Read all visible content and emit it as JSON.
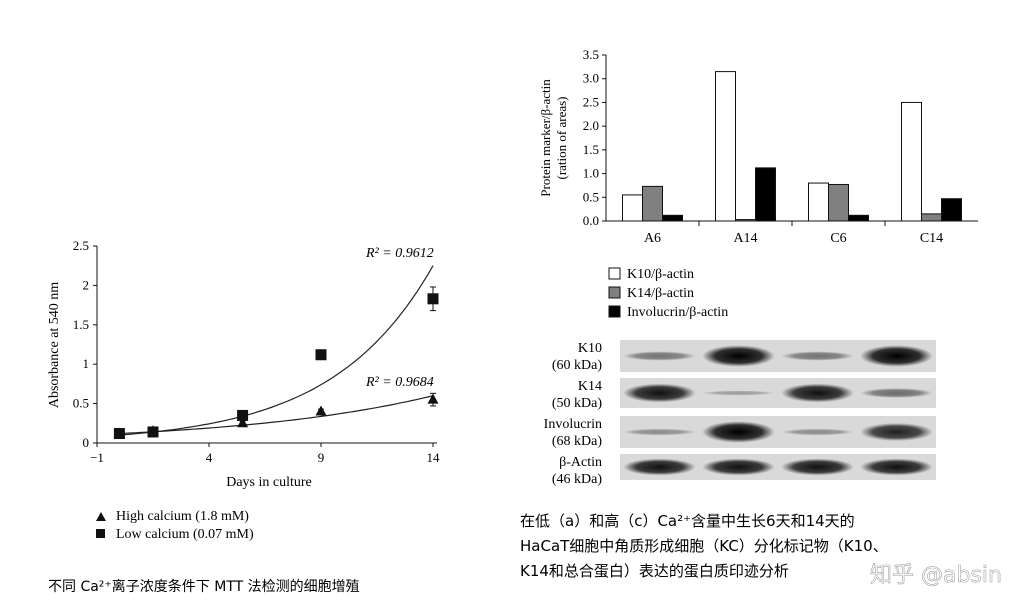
{
  "left_chart": {
    "chart_data": {
      "type": "scatter",
      "xlabel": "Days in culture",
      "ylabel": "Absorbance at 540 nm",
      "xlim": [
        -1,
        14
      ],
      "ylim": [
        0,
        2.5
      ],
      "x_ticks": [
        "−1",
        "4",
        "9",
        "14"
      ],
      "y_ticks": [
        "0",
        "0.5",
        "1",
        "1.5",
        "2",
        "2.5"
      ],
      "series": [
        {
          "name": "High calcium (1.8 mM)",
          "marker": "triangle",
          "points": [
            [
              0,
              0.12
            ],
            [
              1.5,
              0.15
            ],
            [
              5.5,
              0.25
            ],
            [
              9,
              0.4
            ],
            [
              14,
              0.55
            ]
          ],
          "errors": [
            0,
            0,
            0.03,
            0.03,
            0.08
          ],
          "fit_label": "R² = 0.9684"
        },
        {
          "name": "Low calcium (0.07 mM)",
          "marker": "square",
          "points": [
            [
              0,
              0.12
            ],
            [
              1.5,
              0.14
            ],
            [
              5.5,
              0.35
            ],
            [
              9,
              1.12
            ],
            [
              14,
              1.83
            ]
          ],
          "errors": [
            0,
            0,
            0.03,
            0.03,
            0.15
          ],
          "fit_label": "R² = 0.9612"
        }
      ]
    },
    "caption": "不同 Ca²⁺离子浓度条件下 MTT 法检测的细胞增殖"
  },
  "right_chart": {
    "chart_data": {
      "type": "bar",
      "ylabel_line1": "Protein marker/β-actin",
      "ylabel_line2": "(ration of areas)",
      "categories": [
        "A6",
        "A14",
        "C6",
        "C14"
      ],
      "ylim": [
        0,
        3.5
      ],
      "y_ticks": [
        "0.0",
        "0.5",
        "1.0",
        "1.5",
        "2.0",
        "2.5",
        "3.0",
        "3.5"
      ],
      "series": [
        {
          "name": "K10/β-actin",
          "color": "#ffffff",
          "values": [
            0.55,
            3.15,
            0.8,
            2.5
          ]
        },
        {
          "name": "K14/β-actin",
          "color": "#808080",
          "values": [
            0.73,
            0.03,
            0.77,
            0.15
          ]
        },
        {
          "name": "Involucrin/β-actin",
          "color": "#000000",
          "values": [
            0.12,
            1.12,
            0.12,
            0.47
          ]
        }
      ]
    }
  },
  "blot": {
    "rows": [
      {
        "name": "K10",
        "kda": "(60 kDa)",
        "intensity": [
          0.3,
          1.0,
          0.3,
          1.0
        ]
      },
      {
        "name": "K14",
        "kda": "(50 kDa)",
        "intensity": [
          0.9,
          0.05,
          0.9,
          0.35
        ]
      },
      {
        "name": "Involucrin",
        "kda": "(68 kDa)",
        "intensity": [
          0.15,
          1.0,
          0.15,
          0.8
        ]
      },
      {
        "name": "β-Actin",
        "kda": "(46 kDa)",
        "intensity": [
          0.9,
          0.9,
          0.9,
          0.9
        ]
      }
    ]
  },
  "caption_right": {
    "line1": "在低（a）和高（c）Ca²⁺含量中生长6天和14天的",
    "line2": "HaCaT细胞中角质形成细胞（KC）分化标记物（K10、",
    "line3": "K14和总合蛋白）表达的蛋白质印迹分析"
  },
  "watermark": "知乎 @absin"
}
